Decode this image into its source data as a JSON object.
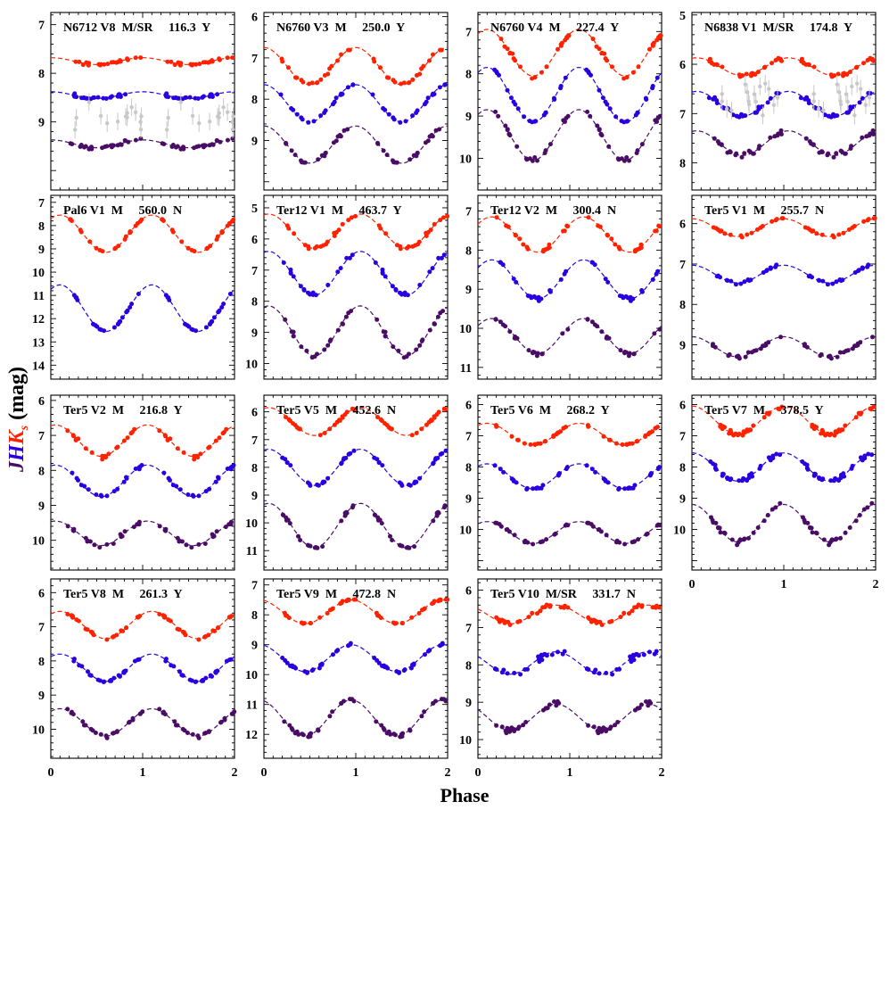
{
  "figure": {
    "xlabel": "Phase",
    "ylabel_parts": [
      "J",
      "H",
      "K",
      "s",
      " (mag)"
    ],
    "colors": {
      "K": "#ff2200",
      "H": "#2a00e0",
      "J": "#4a0d66",
      "extra": "#c8c8c8",
      "axis": "#000000"
    }
  },
  "chart_data": [
    {
      "type": "scatter",
      "title": [
        "N6712 V8",
        "M/SR",
        "116.3",
        "Y"
      ],
      "ylim": [
        6.75,
        10.4
      ],
      "yticks": [
        7,
        8,
        9
      ],
      "xlim": [
        0,
        2
      ],
      "xticks": [
        0,
        1,
        2
      ],
      "x_tick_labels_shown": false,
      "series": [
        {
          "name": "Ks",
          "mean": 7.75,
          "amp": 0.07,
          "phase0": 0.5,
          "scatter": 0.05,
          "n": 24
        },
        {
          "name": "H",
          "mean": 8.45,
          "amp": 0.07,
          "phase0": 0.5,
          "scatter": 0.05,
          "n": 24
        },
        {
          "name": "J",
          "mean": 9.45,
          "amp": 0.08,
          "phase0": 0.5,
          "scatter": 0.06,
          "n": 24
        },
        {
          "name": "other",
          "mean": 8.9,
          "amp": 0.0,
          "phase0": 0.5,
          "scatter": 0.45,
          "n": 14
        }
      ]
    },
    {
      "type": "scatter",
      "title": [
        "N6760 V3",
        "M",
        "250.0",
        "Y"
      ],
      "ylim": [
        5.9,
        10.2
      ],
      "yticks": [
        6,
        7,
        8,
        9
      ],
      "xlim": [
        0,
        2
      ],
      "xticks": [
        0,
        1,
        2
      ],
      "x_tick_labels_shown": false,
      "series": [
        {
          "name": "Ks",
          "mean": 7.2,
          "amp": 0.45,
          "phase0": 0.5,
          "scatter": 0.06,
          "n": 20
        },
        {
          "name": "H",
          "mean": 8.1,
          "amp": 0.45,
          "phase0": 0.5,
          "scatter": 0.08,
          "n": 20
        },
        {
          "name": "J",
          "mean": 9.1,
          "amp": 0.45,
          "phase0": 0.5,
          "scatter": 0.07,
          "n": 20
        }
      ]
    },
    {
      "type": "scatter",
      "title": [
        "N6760 V4",
        "M",
        "227.4",
        "Y"
      ],
      "ylim": [
        6.55,
        10.75
      ],
      "yticks": [
        7,
        8,
        9,
        10
      ],
      "xlim": [
        0,
        2
      ],
      "xticks": [
        0,
        1,
        2
      ],
      "x_tick_labels_shown": false,
      "series": [
        {
          "name": "Ks",
          "mean": 7.5,
          "amp": 0.55,
          "phase0": 0.6,
          "scatter": 0.08,
          "n": 22
        },
        {
          "name": "H",
          "mean": 8.5,
          "amp": 0.65,
          "phase0": 0.6,
          "scatter": 0.08,
          "n": 22
        },
        {
          "name": "J",
          "mean": 9.45,
          "amp": 0.6,
          "phase0": 0.6,
          "scatter": 0.08,
          "n": 22
        }
      ]
    },
    {
      "type": "scatter",
      "title": [
        "N6838 V1",
        "M/SR",
        "174.8",
        "Y"
      ],
      "ylim": [
        4.95,
        8.55
      ],
      "yticks": [
        5,
        6,
        7,
        8
      ],
      "xlim": [
        0,
        2
      ],
      "xticks": [
        0,
        1,
        2
      ],
      "x_tick_labels_shown": false,
      "series": [
        {
          "name": "Ks",
          "mean": 6.05,
          "amp": 0.18,
          "phase0": 0.55,
          "scatter": 0.07,
          "n": 26
        },
        {
          "name": "H",
          "mean": 6.8,
          "amp": 0.25,
          "phase0": 0.55,
          "scatter": 0.08,
          "n": 26
        },
        {
          "name": "J",
          "mean": 7.6,
          "amp": 0.25,
          "phase0": 0.55,
          "scatter": 0.08,
          "n": 26
        },
        {
          "name": "other",
          "mean": 6.7,
          "amp": 0.0,
          "phase0": 0.5,
          "scatter": 0.55,
          "n": 16
        }
      ]
    },
    {
      "type": "scatter",
      "title": [
        "Pal6 V1",
        "M",
        "560.0",
        "N"
      ],
      "ylim": [
        6.7,
        14.6
      ],
      "yticks": [
        7,
        8,
        9,
        10,
        11,
        12,
        13,
        14
      ],
      "xlim": [
        0,
        2
      ],
      "xticks": [
        0,
        1,
        2
      ],
      "x_tick_labels_shown": false,
      "series": [
        {
          "name": "Ks",
          "mean": 8.35,
          "amp": 0.8,
          "phase0": 0.6,
          "scatter": 0.05,
          "n": 22
        },
        {
          "name": "H",
          "mean": 11.55,
          "amp": 1.0,
          "phase0": 0.6,
          "scatter": 0.06,
          "n": 22
        }
      ]
    },
    {
      "type": "scatter",
      "title": [
        "Ter12 V1",
        "M",
        "463.7",
        "Y"
      ],
      "ylim": [
        4.6,
        10.5
      ],
      "yticks": [
        5,
        6,
        7,
        8,
        9,
        10
      ],
      "xlim": [
        0,
        2
      ],
      "xticks": [
        0,
        1,
        2
      ],
      "x_tick_labels_shown": false,
      "series": [
        {
          "name": "Ks",
          "mean": 5.75,
          "amp": 0.55,
          "phase0": 0.55,
          "scatter": 0.08,
          "n": 20
        },
        {
          "name": "H",
          "mean": 7.1,
          "amp": 0.7,
          "phase0": 0.55,
          "scatter": 0.1,
          "n": 20
        },
        {
          "name": "J",
          "mean": 8.95,
          "amp": 0.8,
          "phase0": 0.55,
          "scatter": 0.1,
          "n": 20
        }
      ]
    },
    {
      "type": "scatter",
      "title": [
        "Ter12 V2",
        "M",
        "300.4",
        "N"
      ],
      "ylim": [
        6.6,
        11.3
      ],
      "yticks": [
        7,
        8,
        9,
        10,
        11
      ],
      "xlim": [
        0,
        2
      ],
      "xticks": [
        0,
        1,
        2
      ],
      "x_tick_labels_shown": false,
      "series": [
        {
          "name": "Ks",
          "mean": 7.6,
          "amp": 0.45,
          "phase0": 0.65,
          "scatter": 0.08,
          "n": 20
        },
        {
          "name": "H",
          "mean": 8.75,
          "amp": 0.5,
          "phase0": 0.65,
          "scatter": 0.08,
          "n": 20
        },
        {
          "name": "J",
          "mean": 10.2,
          "amp": 0.45,
          "phase0": 0.65,
          "scatter": 0.07,
          "n": 20
        }
      ]
    },
    {
      "type": "scatter",
      "title": [
        "Ter5 V1",
        "M",
        "255.7",
        "N"
      ],
      "ylim": [
        5.3,
        9.85
      ],
      "yticks": [
        6,
        7,
        8,
        9
      ],
      "xlim": [
        0,
        2
      ],
      "xticks": [
        0,
        1,
        2
      ],
      "x_tick_labels_shown": false,
      "series": [
        {
          "name": "Ks",
          "mean": 6.1,
          "amp": 0.22,
          "phase0": 0.5,
          "scatter": 0.04,
          "n": 20
        },
        {
          "name": "H",
          "mean": 7.25,
          "amp": 0.22,
          "phase0": 0.5,
          "scatter": 0.05,
          "n": 20
        },
        {
          "name": "J",
          "mean": 9.05,
          "amp": 0.25,
          "phase0": 0.5,
          "scatter": 0.07,
          "n": 22
        }
      ]
    },
    {
      "type": "scatter",
      "title": [
        "Ter5 V2",
        "M",
        "216.8",
        "Y"
      ],
      "ylim": [
        5.85,
        10.85
      ],
      "yticks": [
        6,
        7,
        8,
        9,
        10
      ],
      "xlim": [
        0,
        2
      ],
      "xticks": [
        0,
        1,
        2
      ],
      "x_tick_labels_shown": false,
      "series": [
        {
          "name": "Ks",
          "mean": 7.15,
          "amp": 0.45,
          "phase0": 0.55,
          "scatter": 0.1,
          "n": 20
        },
        {
          "name": "H",
          "mean": 8.3,
          "amp": 0.45,
          "phase0": 0.55,
          "scatter": 0.1,
          "n": 20
        },
        {
          "name": "J",
          "mean": 9.8,
          "amp": 0.35,
          "phase0": 0.55,
          "scatter": 0.1,
          "n": 20
        }
      ]
    },
    {
      "type": "scatter",
      "title": [
        "Ter5 V5",
        "M",
        "452.6",
        "N"
      ],
      "ylim": [
        5.4,
        11.7
      ],
      "yticks": [
        6,
        7,
        8,
        9,
        10,
        11
      ],
      "xlim": [
        0,
        2
      ],
      "xticks": [
        0,
        1,
        2
      ],
      "x_tick_labels_shown": false,
      "series": [
        {
          "name": "Ks",
          "mean": 6.35,
          "amp": 0.5,
          "phase0": 0.55,
          "scatter": 0.07,
          "n": 22
        },
        {
          "name": "H",
          "mean": 8.0,
          "amp": 0.65,
          "phase0": 0.55,
          "scatter": 0.08,
          "n": 22
        },
        {
          "name": "J",
          "mean": 10.1,
          "amp": 0.8,
          "phase0": 0.55,
          "scatter": 0.1,
          "n": 22
        }
      ]
    },
    {
      "type": "scatter",
      "title": [
        "Ter5 V6",
        "M",
        "268.2",
        "Y"
      ],
      "ylim": [
        5.7,
        11.3
      ],
      "yticks": [
        6,
        7,
        8,
        9,
        10
      ],
      "xlim": [
        0,
        2
      ],
      "xticks": [
        0,
        1,
        2
      ],
      "x_tick_labels_shown": false,
      "series": [
        {
          "name": "Ks",
          "mean": 6.95,
          "amp": 0.35,
          "phase0": 0.6,
          "scatter": 0.07,
          "n": 22
        },
        {
          "name": "H",
          "mean": 8.3,
          "amp": 0.4,
          "phase0": 0.6,
          "scatter": 0.08,
          "n": 22
        },
        {
          "name": "J",
          "mean": 10.1,
          "amp": 0.35,
          "phase0": 0.6,
          "scatter": 0.08,
          "n": 22
        }
      ]
    },
    {
      "type": "scatter",
      "title": [
        "Ter5 V7",
        "M",
        "378.5",
        "Y"
      ],
      "ylim": [
        5.7,
        11.3
      ],
      "yticks": [
        6,
        7,
        8,
        9,
        10
      ],
      "xlim": [
        0,
        2
      ],
      "xticks": [
        0,
        1,
        2
      ],
      "x_tick_labels_shown": true,
      "series": [
        {
          "name": "Ks",
          "mean": 6.5,
          "amp": 0.45,
          "phase0": 0.5,
          "scatter": 0.12,
          "n": 30
        },
        {
          "name": "H",
          "mean": 8.0,
          "amp": 0.45,
          "phase0": 0.5,
          "scatter": 0.12,
          "n": 30
        },
        {
          "name": "J",
          "mean": 9.8,
          "amp": 0.6,
          "phase0": 0.5,
          "scatter": 0.15,
          "n": 26
        }
      ]
    },
    {
      "type": "scatter",
      "title": [
        "Ter5 V8",
        "M",
        "261.3",
        "Y"
      ],
      "ylim": [
        5.6,
        10.85
      ],
      "yticks": [
        6,
        7,
        8,
        9,
        10
      ],
      "xlim": [
        0,
        2
      ],
      "xticks": [
        0,
        1,
        2
      ],
      "x_tick_labels_shown": true,
      "series": [
        {
          "name": "Ks",
          "mean": 6.95,
          "amp": 0.4,
          "phase0": 0.6,
          "scatter": 0.06,
          "n": 24
        },
        {
          "name": "H",
          "mean": 8.2,
          "amp": 0.4,
          "phase0": 0.6,
          "scatter": 0.07,
          "n": 24
        },
        {
          "name": "J",
          "mean": 9.8,
          "amp": 0.4,
          "phase0": 0.6,
          "scatter": 0.07,
          "n": 24
        }
      ]
    },
    {
      "type": "scatter",
      "title": [
        "Ter5 V9",
        "M",
        "472.8",
        "N"
      ],
      "ylim": [
        6.8,
        12.8
      ],
      "yticks": [
        7,
        8,
        9,
        10,
        11,
        12
      ],
      "xlim": [
        0,
        2
      ],
      "xticks": [
        0,
        1,
        2
      ],
      "x_tick_labels_shown": true,
      "series": [
        {
          "name": "Ks",
          "mean": 7.9,
          "amp": 0.4,
          "phase0": 0.45,
          "scatter": 0.08,
          "n": 24
        },
        {
          "name": "H",
          "mean": 9.45,
          "amp": 0.45,
          "phase0": 0.45,
          "scatter": 0.1,
          "n": 24
        },
        {
          "name": "J",
          "mean": 11.45,
          "amp": 0.6,
          "phase0": 0.45,
          "scatter": 0.1,
          "n": 24
        }
      ]
    },
    {
      "type": "scatter",
      "title": [
        "Ter5 V10",
        "M/SR",
        "331.7",
        "N"
      ],
      "ylim": [
        5.7,
        10.5
      ],
      "yticks": [
        6,
        7,
        8,
        9,
        10
      ],
      "xlim": [
        0,
        2
      ],
      "xticks": [
        0,
        1,
        2
      ],
      "x_tick_labels_shown": true,
      "series": [
        {
          "name": "Ks",
          "mean": 6.65,
          "amp": 0.25,
          "phase0": 0.35,
          "scatter": 0.1,
          "n": 26
        },
        {
          "name": "H",
          "mean": 7.95,
          "amp": 0.3,
          "phase0": 0.35,
          "scatter": 0.12,
          "n": 26
        },
        {
          "name": "J",
          "mean": 9.4,
          "amp": 0.35,
          "phase0": 0.35,
          "scatter": 0.12,
          "n": 26
        }
      ]
    }
  ]
}
